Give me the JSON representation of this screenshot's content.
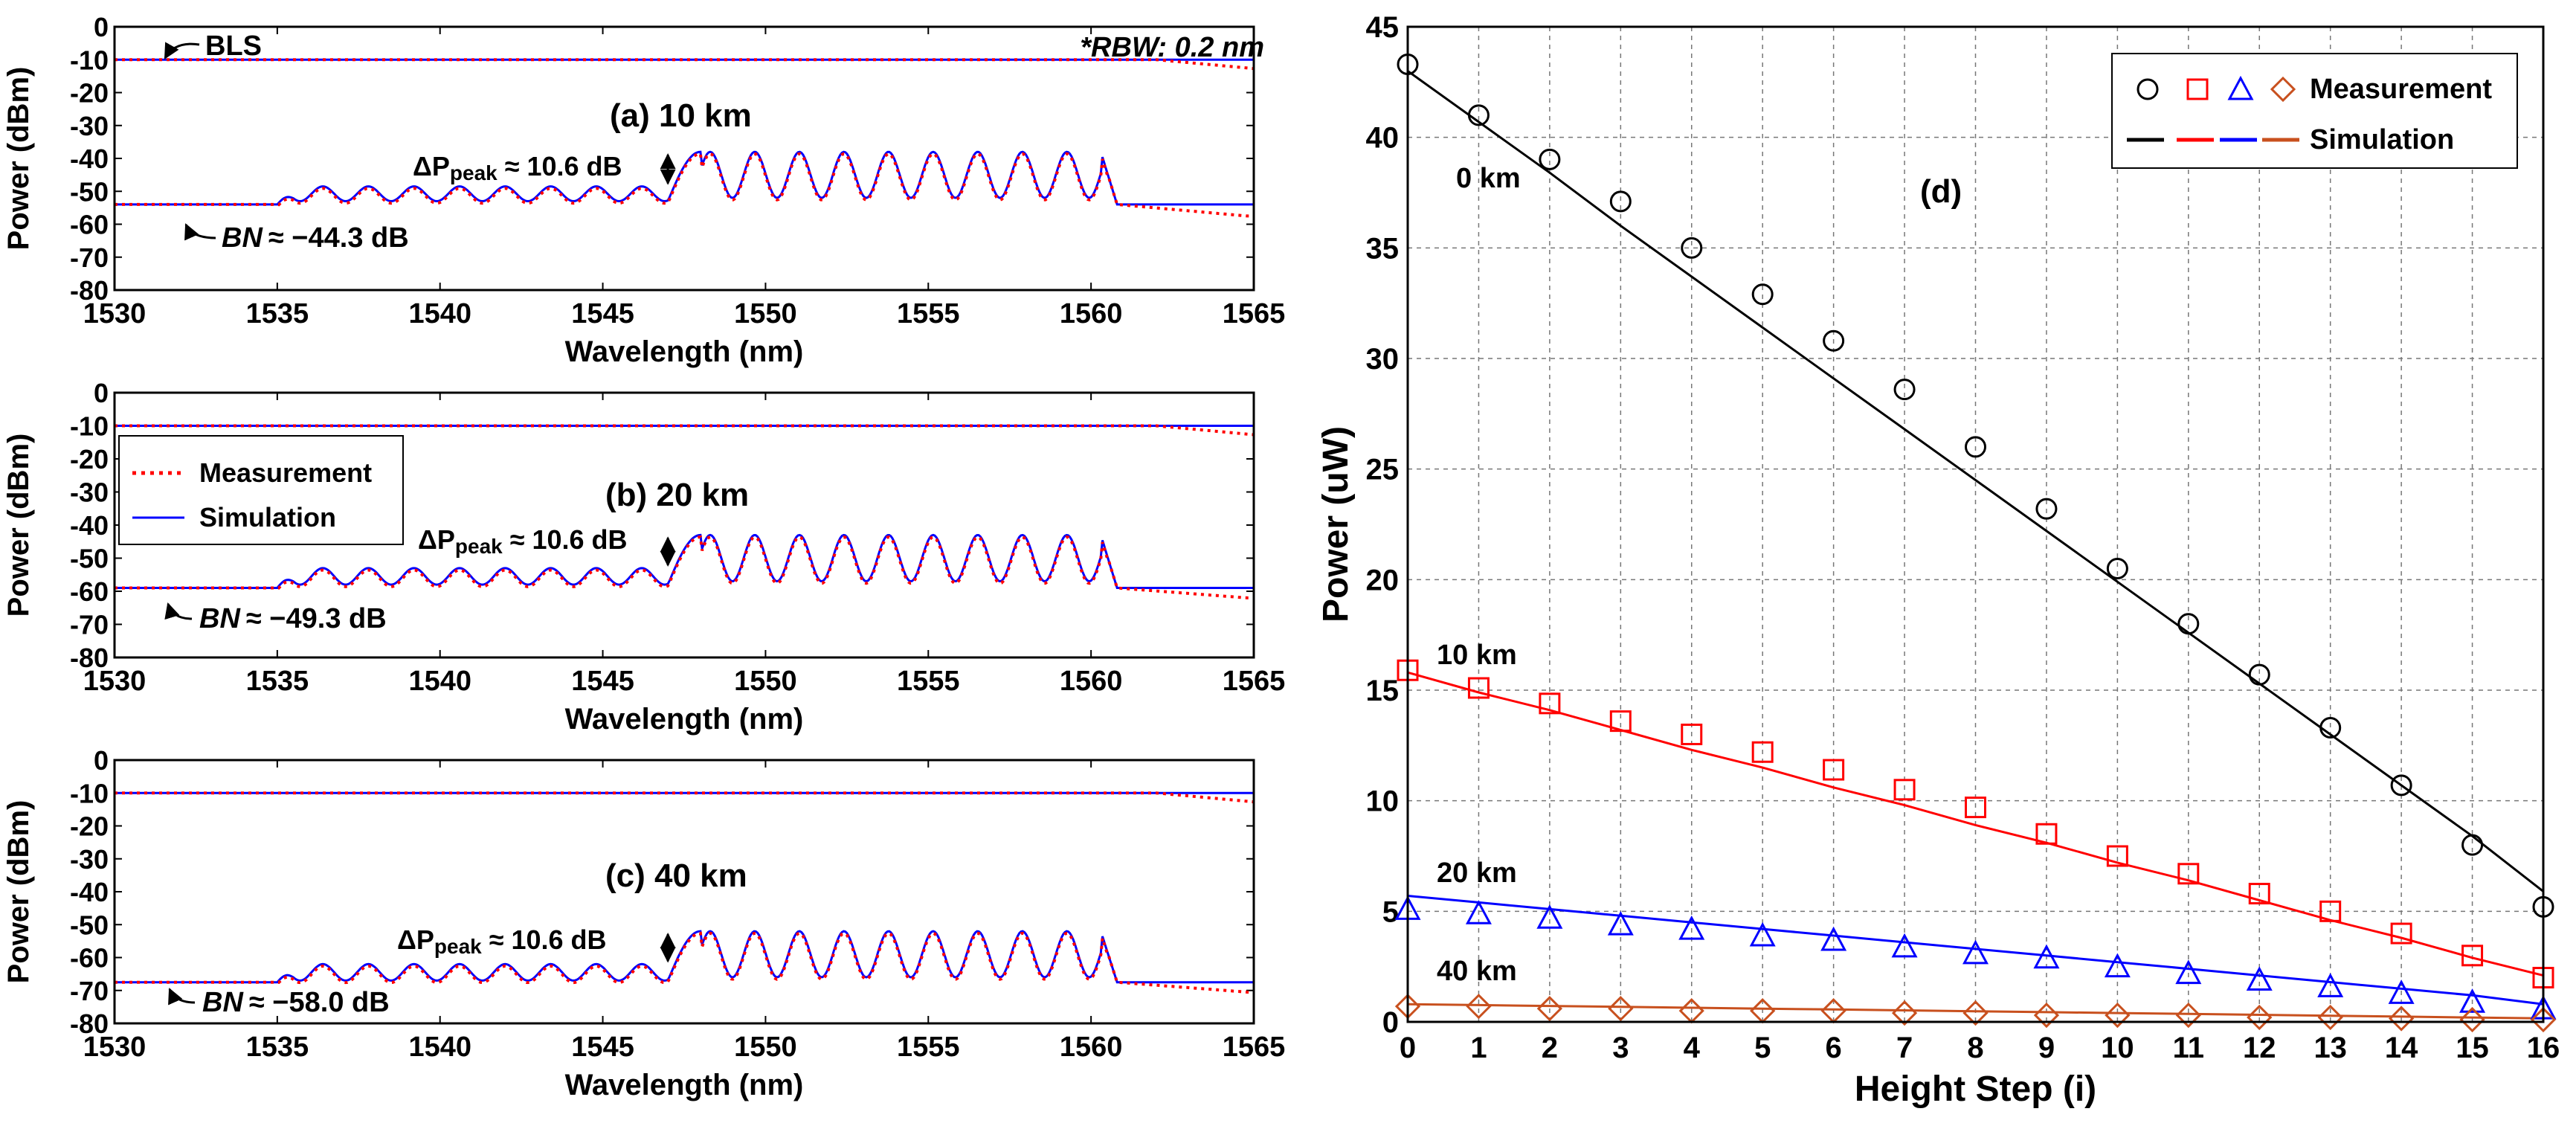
{
  "chart_data": [
    {
      "id": "a",
      "type": "line",
      "panel_label": "(a) 10 km",
      "xlabel": "Wavelength (nm)",
      "ylabel": "Power (dBm)",
      "xlim": [
        1530,
        1565
      ],
      "ylim": [
        -80,
        0
      ],
      "xticks": [
        1530,
        1535,
        1540,
        1545,
        1550,
        1555,
        1560,
        1565
      ],
      "yticks": [
        0,
        -10,
        -20,
        -30,
        -40,
        -50,
        -60,
        -70,
        -80
      ],
      "bls_level": -10,
      "floor": -54,
      "small_peak": -48.5,
      "small_dip": -53,
      "big_peak": -38,
      "big_dip": -52,
      "meas_tail": -57.5,
      "series": [
        {
          "name": "Measurement",
          "color": "#ff0000",
          "style": "dotted"
        },
        {
          "name": "Simulation",
          "color": "#0000ff",
          "style": "solid"
        }
      ],
      "annotations": {
        "bls": "BLS",
        "rbw": "*RBW: 0.2 nm",
        "delta_prefix": "ΔP",
        "delta_sub": "peak",
        "delta_value": "≈ 10.6 dB",
        "bn_label": "BN",
        "bn_value": "≈ −44.3 dB"
      }
    },
    {
      "id": "b",
      "type": "line",
      "panel_label": "(b) 20 km",
      "xlabel": "Wavelength (nm)",
      "ylabel": "Power (dBm)",
      "xlim": [
        1530,
        1565
      ],
      "ylim": [
        -80,
        0
      ],
      "xticks": [
        1530,
        1535,
        1540,
        1545,
        1550,
        1555,
        1560,
        1565
      ],
      "yticks": [
        0,
        -10,
        -20,
        -30,
        -40,
        -50,
        -60,
        -70,
        -80
      ],
      "bls_level": -10,
      "floor": -59,
      "small_peak": -53,
      "small_dip": -58,
      "big_peak": -43,
      "big_dip": -57,
      "meas_tail": -62,
      "series": [
        {
          "name": "Measurement",
          "color": "#ff0000",
          "style": "dotted"
        },
        {
          "name": "Simulation",
          "color": "#0000ff",
          "style": "solid"
        }
      ],
      "legend": [
        "Measurement",
        "Simulation"
      ],
      "annotations": {
        "delta_prefix": "ΔP",
        "delta_sub": "peak",
        "delta_value": "≈ 10.6 dB",
        "bn_label": "BN",
        "bn_value": "≈ −49.3 dB"
      }
    },
    {
      "id": "c",
      "type": "line",
      "panel_label": "(c) 40 km",
      "xlabel": "Wavelength (nm)",
      "ylabel": "Power (dBm)",
      "xlim": [
        1530,
        1565
      ],
      "ylim": [
        -80,
        0
      ],
      "xticks": [
        1530,
        1535,
        1540,
        1545,
        1550,
        1555,
        1560,
        1565
      ],
      "yticks": [
        0,
        -10,
        -20,
        -30,
        -40,
        -50,
        -60,
        -70,
        -80
      ],
      "bls_level": -10,
      "floor": -67.5,
      "small_peak": -62,
      "small_dip": -67,
      "big_peak": -52,
      "big_dip": -66,
      "meas_tail": -70.5,
      "series": [
        {
          "name": "Measurement",
          "color": "#ff0000",
          "style": "dotted"
        },
        {
          "name": "Simulation",
          "color": "#0000ff",
          "style": "solid"
        }
      ],
      "annotations": {
        "delta_prefix": "ΔP",
        "delta_sub": "peak",
        "delta_value": "≈ 10.6 dB",
        "bn_label": "BN",
        "bn_value": "≈ −58.0 dB"
      }
    },
    {
      "id": "d",
      "type": "scatter",
      "panel_label": "(d)",
      "xlabel": "Height Step (i)",
      "ylabel": "Power (uW)",
      "xlim": [
        0,
        16
      ],
      "ylim": [
        0,
        45
      ],
      "xticks": [
        0,
        1,
        2,
        3,
        4,
        5,
        6,
        7,
        8,
        9,
        10,
        11,
        12,
        13,
        14,
        15,
        16
      ],
      "yticks": [
        0,
        5,
        10,
        15,
        20,
        25,
        30,
        35,
        40,
        45
      ],
      "grid": true,
      "legend": {
        "position": "top-right",
        "measurement": "Measurement",
        "simulation": "Simulation"
      },
      "x": [
        0,
        1,
        2,
        3,
        4,
        5,
        6,
        7,
        8,
        9,
        10,
        11,
        12,
        13,
        14,
        15,
        16
      ],
      "series": [
        {
          "name": "0 km",
          "color": "#000000",
          "marker": "circle",
          "measurement": [
            43.3,
            41.0,
            39.0,
            37.1,
            35.0,
            32.9,
            30.8,
            28.6,
            26.0,
            23.2,
            20.5,
            18.0,
            15.7,
            13.3,
            10.7,
            8.0,
            5.2
          ],
          "simulation": [
            43.0,
            40.7,
            38.4,
            36.0,
            33.7,
            31.4,
            29.1,
            26.8,
            24.5,
            22.2,
            19.9,
            17.6,
            15.3,
            13.0,
            10.7,
            8.4,
            5.9
          ]
        },
        {
          "name": "10 km",
          "color": "#ff0000",
          "marker": "square",
          "measurement": [
            15.9,
            15.1,
            14.4,
            13.6,
            13.0,
            12.2,
            11.4,
            10.5,
            9.7,
            8.5,
            7.5,
            6.7,
            5.8,
            5.0,
            4.0,
            3.0,
            2.0
          ],
          "simulation": [
            15.8,
            14.9,
            14.1,
            13.2,
            12.3,
            11.5,
            10.6,
            9.8,
            8.9,
            8.1,
            7.2,
            6.4,
            5.5,
            4.6,
            3.8,
            2.9,
            2.1
          ]
        },
        {
          "name": "20 km",
          "color": "#0000ff",
          "marker": "triangle",
          "measurement": [
            5.1,
            4.9,
            4.7,
            4.4,
            4.2,
            3.9,
            3.7,
            3.4,
            3.1,
            2.9,
            2.5,
            2.2,
            1.9,
            1.6,
            1.3,
            0.9,
            0.6
          ],
          "simulation": [
            5.7,
            5.4,
            5.1,
            4.8,
            4.5,
            4.2,
            3.9,
            3.6,
            3.3,
            3.0,
            2.7,
            2.4,
            2.1,
            1.8,
            1.5,
            1.2,
            0.8
          ]
        },
        {
          "name": "40 km",
          "color": "#c8501e",
          "marker": "diamond",
          "measurement": [
            0.7,
            0.7,
            0.6,
            0.6,
            0.5,
            0.5,
            0.5,
            0.4,
            0.4,
            0.3,
            0.3,
            0.3,
            0.2,
            0.2,
            0.15,
            0.1,
            0.1
          ],
          "simulation": [
            0.8,
            0.76,
            0.72,
            0.68,
            0.64,
            0.6,
            0.56,
            0.52,
            0.48,
            0.44,
            0.4,
            0.36,
            0.32,
            0.28,
            0.24,
            0.2,
            0.16
          ]
        }
      ]
    }
  ]
}
